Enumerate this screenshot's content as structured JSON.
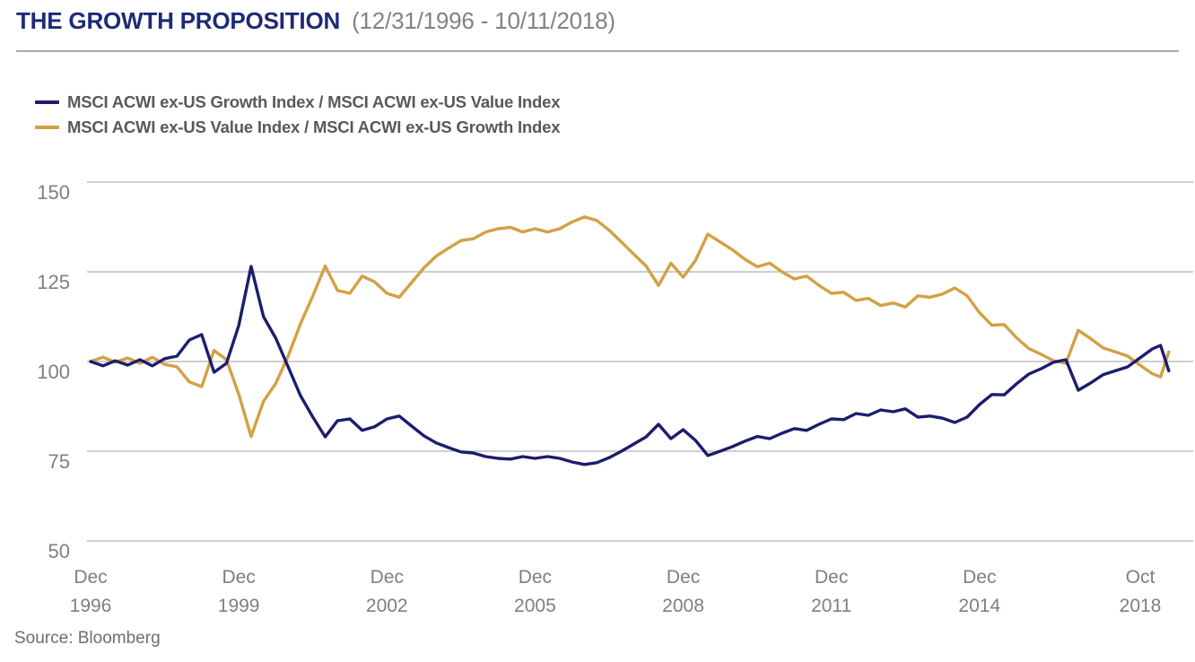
{
  "header": {
    "title": "THE GROWTH PROPOSITION",
    "period": "(12/31/1996 - 10/11/2018)"
  },
  "legend": {
    "items": [
      {
        "label": "MSCI ACWI ex-US Growth Index / MSCI ACWI ex-US Value Index",
        "color": "#1b1d6e"
      },
      {
        "label": "MSCI ACWI ex-US Value Index / MSCI ACWI ex-US Growth Index",
        "color": "#d2a145"
      }
    ]
  },
  "source": "Source: Bloomberg",
  "chart_data": {
    "type": "line",
    "title": "THE GROWTH PROPOSITION (12/31/1996 - 10/11/2018)",
    "xlabel": "",
    "ylabel": "",
    "ylim": [
      50,
      150
    ],
    "grid": "horizontal",
    "legend_position": "top-left",
    "colors": {
      "gridline": "#c7c8ca",
      "axis_text": "#7d7f82"
    },
    "y_ticks": [
      150,
      125,
      100,
      75,
      50
    ],
    "x_ticks": [
      {
        "line1": "Dec",
        "line2": "1996",
        "month": 0
      },
      {
        "line1": "Dec",
        "line2": "1999",
        "month": 36
      },
      {
        "line1": "Dec",
        "line2": "2002",
        "month": 72
      },
      {
        "line1": "Dec",
        "line2": "2005",
        "month": 108
      },
      {
        "line1": "Dec",
        "line2": "2008",
        "month": 144
      },
      {
        "line1": "Dec",
        "line2": "2011",
        "month": 180
      },
      {
        "line1": "Dec",
        "line2": "2014",
        "month": 216
      },
      {
        "line1": "Oct",
        "line2": "2018",
        "month": 262
      }
    ],
    "x_months": [
      0,
      3,
      6,
      9,
      12,
      15,
      18,
      21,
      24,
      27,
      30,
      33,
      36,
      39,
      42,
      45,
      48,
      51,
      54,
      57,
      60,
      63,
      66,
      69,
      72,
      75,
      78,
      81,
      84,
      87,
      90,
      93,
      96,
      99,
      102,
      105,
      108,
      111,
      114,
      117,
      120,
      123,
      126,
      129,
      132,
      135,
      138,
      141,
      144,
      147,
      150,
      153,
      156,
      159,
      162,
      165,
      168,
      171,
      174,
      177,
      180,
      183,
      186,
      189,
      192,
      195,
      198,
      201,
      204,
      207,
      210,
      213,
      216,
      219,
      222,
      225,
      228,
      231,
      234,
      237,
      240,
      243,
      246,
      249,
      252,
      255,
      258,
      260,
      262
    ],
    "series": [
      {
        "name": "MSCI ACWI ex-US Growth Index / MSCI ACWI ex-US Value Index",
        "color": "#1b1d6e",
        "data_name": "growth-over-value-line",
        "values": [
          100,
          98.8,
          100.2,
          99,
          100.5,
          98.8,
          100.8,
          101.5,
          106,
          107.5,
          97,
          99.5,
          110,
          126.5,
          112.5,
          106.5,
          98.5,
          90.5,
          84.5,
          79,
          83.5,
          84,
          80.8,
          81.8,
          84,
          84.8,
          82,
          79.3,
          77.3,
          76,
          74.8,
          74.5,
          73.5,
          73,
          72.8,
          73.5,
          73,
          73.5,
          73,
          72,
          71.3,
          71.8,
          73.2,
          75,
          77,
          79,
          82.5,
          78.5,
          81,
          78,
          73.8,
          75,
          76.3,
          77.8,
          79.1,
          78.5,
          80,
          81.3,
          80.8,
          82.5,
          84,
          83.8,
          85.5,
          85,
          86.5,
          86,
          86.8,
          84.5,
          84.8,
          84.2,
          83,
          84.5,
          88,
          90.8,
          90.7,
          93.8,
          96.5,
          98,
          99.8,
          100.5,
          92,
          94,
          96.3,
          97.4,
          98.5,
          101,
          103.5,
          104.5,
          97.4
        ]
      },
      {
        "name": "MSCI ACWI ex-US Value Index / MSCI ACWI ex-US Growth Index",
        "color": "#d2a145",
        "data_name": "value-over-growth-line",
        "values": [
          100,
          101.2,
          99.8,
          101,
          99.5,
          101.2,
          99.2,
          98.5,
          94.3,
          93,
          103.1,
          100.5,
          90.9,
          79.1,
          88.9,
          93.9,
          101.5,
          110.5,
          118.3,
          126.6,
          119.8,
          119,
          123.8,
          122.2,
          119,
          117.9,
          122,
          126.1,
          129.4,
          131.6,
          133.7,
          134.2,
          136.1,
          137,
          137.4,
          136.1,
          137,
          136.1,
          137,
          138.9,
          140.3,
          139.3,
          136.6,
          133.3,
          129.9,
          126.6,
          121.2,
          127.4,
          123.5,
          128.2,
          135.5,
          133.3,
          131.1,
          128.5,
          126.4,
          127.4,
          125,
          123,
          123.8,
          121.2,
          119,
          119.3,
          117,
          117.6,
          115.6,
          116.3,
          115.2,
          118.3,
          117.9,
          118.8,
          120.5,
          118.3,
          113.6,
          110.1,
          110.3,
          106.6,
          103.6,
          102,
          100.2,
          99.5,
          108.7,
          106.4,
          103.8,
          102.7,
          101.5,
          99,
          96.6,
          95.7,
          102.7
        ]
      }
    ]
  }
}
